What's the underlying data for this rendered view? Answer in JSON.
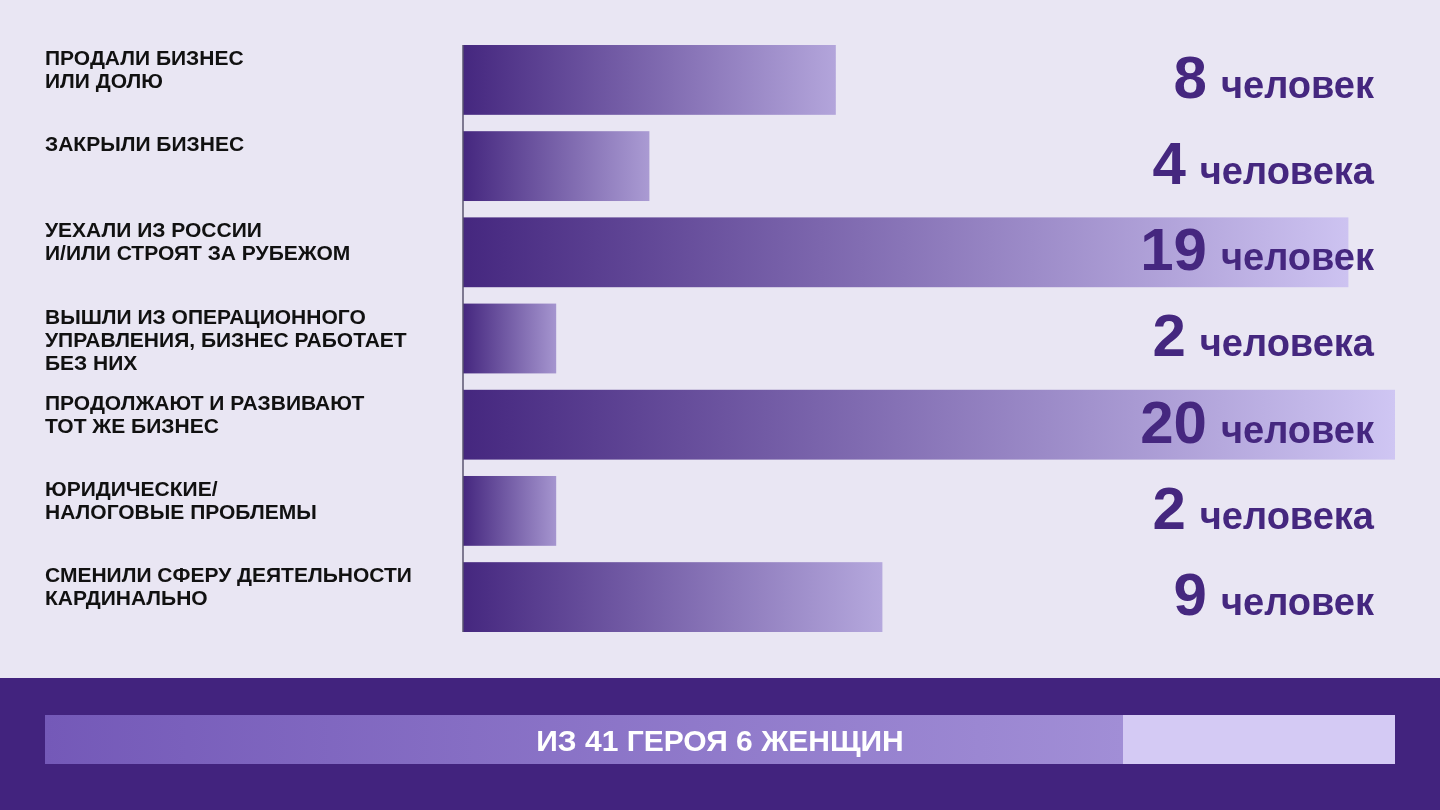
{
  "chart_data": {
    "type": "bar",
    "orientation": "horizontal",
    "categories": [
      "ПРОДАЛИ БИЗНЕС\nИЛИ ДОЛЮ",
      "ЗАКРЫЛИ БИЗНЕС",
      "УЕХАЛИ ИЗ РОССИИ\nИ/ИЛИ СТРОЯТ ЗА РУБЕЖОМ",
      "ВЫШЛИ ИЗ ОПЕРАЦИОННОГО\nУПРАВЛЕНИЯ, БИЗНЕС РАБОТАЕТ\nБЕЗ НИХ",
      "ПРОДОЛЖАЮТ И РАЗВИВАЮТ\nТОТ ЖЕ БИЗНЕС",
      "ЮРИДИЧЕСКИЕ/\nНАЛОГОВЫЕ ПРОБЛЕМЫ",
      "СМЕНИЛИ СФЕРУ ДЕЯТЕЛЬНОСТИ\nКАРДИНАЛЬНО"
    ],
    "values": [
      8,
      4,
      19,
      2,
      20,
      2,
      9
    ],
    "color": "#45277f",
    "value_labels": [
      "8 человек",
      "4 человека",
      "19 человек",
      "2 человека",
      "20 человек",
      "2 человека",
      "9 человек"
    ],
    "annotations": [
      "ИЗ 41 ГЕРОЯ 6 ЖЕНЩИН"
    ]
  }
}
